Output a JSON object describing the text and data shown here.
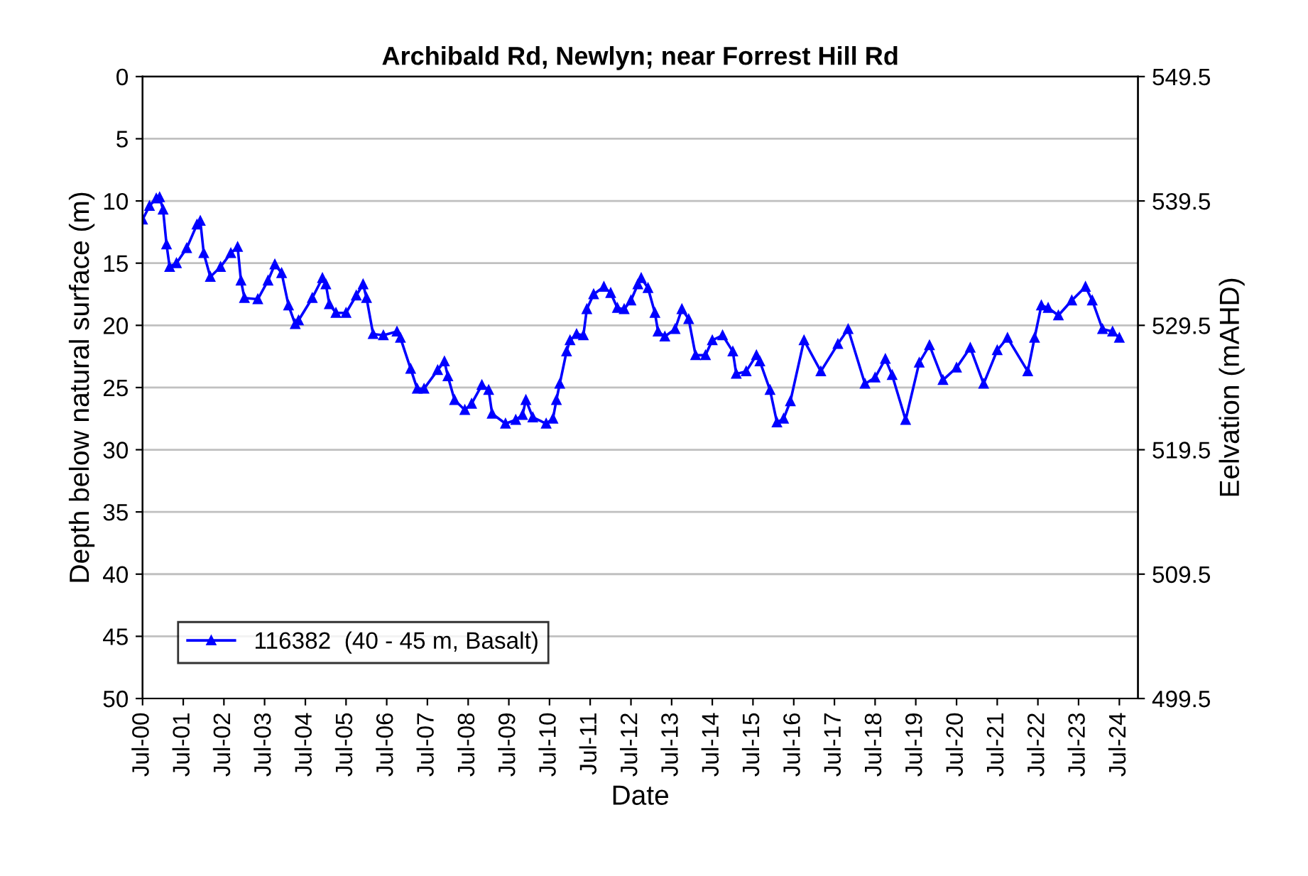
{
  "chart_data": {
    "type": "line",
    "title": "Archibald Rd, Newlyn; near Forrest Hill Rd",
    "xlabel": "Date",
    "ylabel": "Depth below natural surface (m)",
    "y2label": "Eelvation (mAHD)",
    "x": [
      "2000-07",
      "2000-09",
      "2000-11",
      "2000-12",
      "2001-01",
      "2001-02",
      "2001-03",
      "2001-05",
      "2001-08",
      "2001-11",
      "2001-12",
      "2002-01",
      "2002-03",
      "2002-06",
      "2002-09",
      "2002-11",
      "2002-12",
      "2003-01",
      "2003-05",
      "2003-08",
      "2003-10",
      "2003-12",
      "2004-02",
      "2004-04",
      "2004-05",
      "2004-09",
      "2004-12",
      "2005-01",
      "2005-02",
      "2005-04",
      "2005-07",
      "2005-10",
      "2005-12",
      "2006-01",
      "2006-03",
      "2006-06",
      "2006-10",
      "2006-11",
      "2007-02",
      "2007-04",
      "2007-06",
      "2007-10",
      "2007-12",
      "2008-01",
      "2008-03",
      "2008-06",
      "2008-08",
      "2008-11",
      "2009-01",
      "2009-02",
      "2009-06",
      "2009-09",
      "2009-11",
      "2009-12",
      "2010-02",
      "2010-06",
      "2010-08",
      "2010-09",
      "2010-10",
      "2010-12",
      "2011-01",
      "2011-03",
      "2011-05",
      "2011-06",
      "2011-08",
      "2011-11",
      "2012-01",
      "2012-03",
      "2012-05",
      "2012-07",
      "2012-09",
      "2012-10",
      "2012-12",
      "2013-02",
      "2013-03",
      "2013-05",
      "2013-08",
      "2013-10",
      "2013-12",
      "2014-02",
      "2014-05",
      "2014-07",
      "2014-10",
      "2015-01",
      "2015-02",
      "2015-05",
      "2015-08",
      "2015-09",
      "2015-12",
      "2016-02",
      "2016-04",
      "2016-06",
      "2016-10",
      "2017-03",
      "2017-08",
      "2017-11",
      "2018-04",
      "2018-07",
      "2018-10",
      "2018-12",
      "2019-04",
      "2019-08",
      "2019-11",
      "2020-03",
      "2020-07",
      "2020-11",
      "2021-03",
      "2021-07",
      "2021-10",
      "2022-04",
      "2022-06",
      "2022-08",
      "2022-10",
      "2023-01",
      "2023-05",
      "2023-09",
      "2023-11",
      "2024-02",
      "2024-05",
      "2024-07"
    ],
    "series": [
      {
        "name": "116382  (40 - 45 m, Basalt)",
        "color": "#0000ff",
        "values": [
          11.5,
          10.4,
          9.8,
          9.7,
          10.7,
          13.5,
          15.3,
          15.0,
          13.8,
          11.9,
          11.6,
          14.2,
          16.1,
          15.3,
          14.2,
          13.7,
          16.4,
          17.8,
          17.9,
          16.4,
          15.1,
          15.8,
          18.4,
          19.9,
          19.6,
          17.8,
          16.2,
          16.7,
          18.3,
          19.0,
          19.0,
          17.6,
          16.7,
          17.8,
          20.7,
          20.8,
          20.5,
          21.0,
          23.5,
          25.1,
          25.1,
          23.6,
          22.9,
          24.1,
          26.0,
          26.8,
          26.3,
          24.8,
          25.2,
          27.1,
          27.9,
          27.6,
          27.2,
          26.0,
          27.4,
          27.9,
          27.5,
          26.0,
          24.7,
          22.1,
          21.2,
          20.7,
          20.8,
          18.7,
          17.5,
          16.9,
          17.4,
          18.6,
          18.7,
          18.0,
          16.7,
          16.2,
          17.0,
          19.0,
          20.5,
          20.9,
          20.3,
          18.7,
          19.5,
          22.4,
          22.4,
          21.2,
          20.8,
          22.1,
          23.9,
          23.7,
          22.4,
          22.9,
          25.2,
          27.8,
          27.5,
          26.1,
          21.2,
          23.7,
          21.5,
          20.3,
          24.7,
          24.2,
          22.7,
          24.0,
          27.6,
          23.0,
          21.6,
          24.4,
          23.4,
          21.8,
          24.7,
          22.0,
          21.0,
          23.7,
          21.0,
          18.4,
          18.6,
          19.2,
          18.0,
          16.9,
          18.0,
          20.3,
          20.5,
          21.0
        ]
      }
    ],
    "xlim": [
      "2000-07",
      "2024-12-15"
    ],
    "xticks": [
      {
        "value": "2000-07",
        "label": "Jul-00"
      },
      {
        "value": "2001-07",
        "label": "Jul-01"
      },
      {
        "value": "2002-07",
        "label": "Jul-02"
      },
      {
        "value": "2003-07",
        "label": "Jul-03"
      },
      {
        "value": "2004-07",
        "label": "Jul-04"
      },
      {
        "value": "2005-07",
        "label": "Jul-05"
      },
      {
        "value": "2006-07",
        "label": "Jul-06"
      },
      {
        "value": "2007-07",
        "label": "Jul-07"
      },
      {
        "value": "2008-07",
        "label": "Jul-08"
      },
      {
        "value": "2009-07",
        "label": "Jul-09"
      },
      {
        "value": "2010-07",
        "label": "Jul-10"
      },
      {
        "value": "2011-07",
        "label": "Jul-11"
      },
      {
        "value": "2012-07",
        "label": "Jul-12"
      },
      {
        "value": "2013-07",
        "label": "Jul-13"
      },
      {
        "value": "2014-07",
        "label": "Jul-14"
      },
      {
        "value": "2015-07",
        "label": "Jul-15"
      },
      {
        "value": "2016-07",
        "label": "Jul-16"
      },
      {
        "value": "2017-07",
        "label": "Jul-17"
      },
      {
        "value": "2018-07",
        "label": "Jul-18"
      },
      {
        "value": "2019-07",
        "label": "Jul-19"
      },
      {
        "value": "2020-07",
        "label": "Jul-20"
      },
      {
        "value": "2021-07",
        "label": "Jul-21"
      },
      {
        "value": "2022-07",
        "label": "Jul-22"
      },
      {
        "value": "2023-07",
        "label": "Jul-23"
      },
      {
        "value": "2024-07",
        "label": "Jul-24"
      }
    ],
    "ylim": [
      50,
      0
    ],
    "yticks": [
      0,
      5,
      10,
      15,
      20,
      25,
      30,
      35,
      40,
      45,
      50
    ],
    "y2lim": [
      499.5,
      549.5
    ],
    "y2ticks": [
      549.5,
      539.5,
      529.5,
      519.5,
      509.5,
      499.5
    ],
    "grid": "y",
    "legend": "bottom left",
    "marker": "triangle",
    "line_style": "solid"
  }
}
